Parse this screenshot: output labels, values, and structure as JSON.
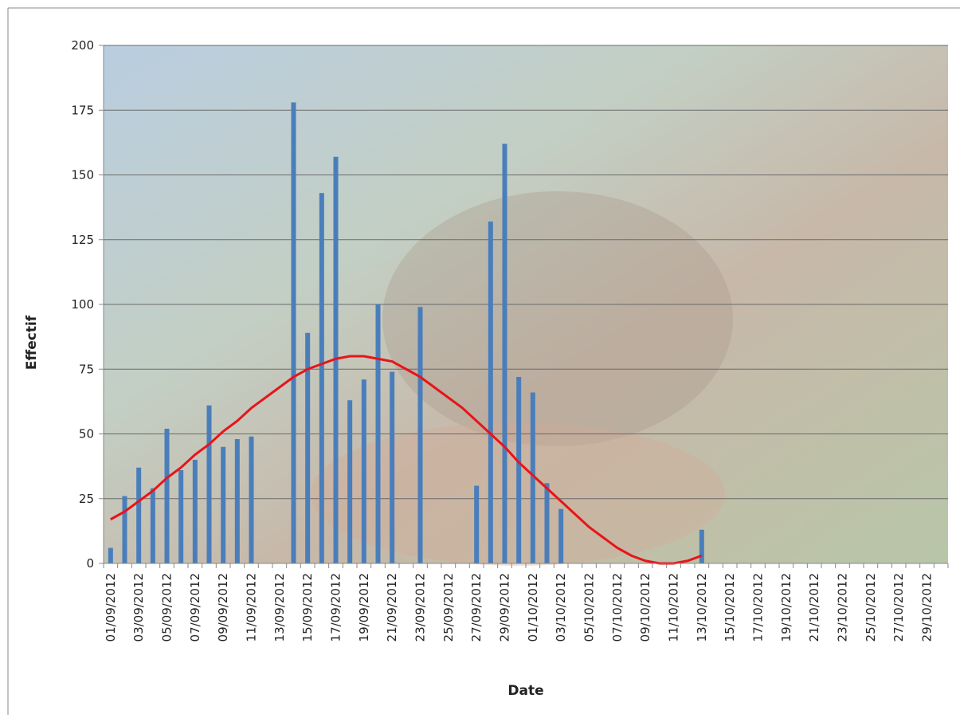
{
  "chart_data": {
    "type": "bar",
    "x_label": "Date",
    "y_label": "Effectif",
    "categories": [
      "01/09/2012",
      null,
      "03/09/2012",
      null,
      "05/09/2012",
      null,
      "07/09/2012",
      null,
      "09/09/2012",
      null,
      "11/09/2012",
      null,
      "13/09/2012",
      null,
      "15/09/2012",
      null,
      "17/09/2012",
      null,
      "19/09/2012",
      null,
      "21/09/2012",
      null,
      "23/09/2012",
      null,
      "25/09/2012",
      null,
      "27/09/2012",
      null,
      "29/09/2012",
      null,
      "01/10/2012",
      null,
      "03/10/2012",
      null,
      "05/10/2012",
      null,
      "07/10/2012",
      null,
      "09/10/2012",
      null,
      "11/10/2012",
      null,
      "13/10/2012",
      null,
      "15/10/2012",
      null,
      "17/10/2012",
      null,
      "19/10/2012",
      null,
      "21/10/2012",
      null,
      "23/10/2012",
      null,
      "25/10/2012",
      null,
      "27/10/2012",
      null,
      "29/10/2012",
      null
    ],
    "values": [
      6,
      26,
      37,
      29,
      52,
      36,
      40,
      61,
      45,
      48,
      49,
      null,
      null,
      178,
      89,
      143,
      157,
      63,
      71,
      100,
      74,
      null,
      99,
      null,
      null,
      null,
      30,
      132,
      162,
      72,
      66,
      31,
      21,
      null,
      null,
      null,
      null,
      null,
      null,
      null,
      null,
      null,
      13,
      null,
      null,
      null,
      null,
      null,
      null,
      null,
      null,
      null,
      null,
      null,
      null,
      null,
      null,
      null,
      null,
      null
    ],
    "color": "#4a7ebb",
    "trendline": {
      "color": "#e8141a",
      "values": [
        17,
        20,
        24,
        28,
        33,
        37,
        42,
        46,
        51,
        55,
        60,
        64,
        68,
        72,
        75,
        77,
        79,
        80,
        80,
        79,
        78,
        75,
        72,
        68,
        64,
        60,
        55,
        50,
        45,
        39,
        34,
        29,
        24,
        19,
        14,
        10,
        6,
        3,
        1,
        0,
        0,
        1,
        3,
        null,
        null,
        null,
        null,
        null,
        null,
        null,
        null,
        null,
        null,
        null,
        null,
        null,
        null,
        null,
        null,
        null
      ]
    },
    "ylim": [
      0,
      200
    ],
    "yticks": [
      0,
      25,
      50,
      75,
      100,
      125,
      150,
      175,
      200
    ],
    "grid": true
  }
}
